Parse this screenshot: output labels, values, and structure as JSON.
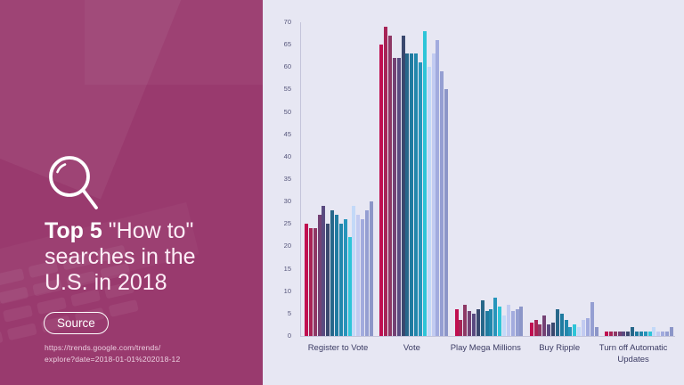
{
  "left_panel": {
    "icon": "magnifier-icon",
    "title_bold": "Top 5",
    "title_rest": "\"How to\"",
    "title_line2": "searches in the",
    "title_line3": "U.S. in 2018",
    "source_label": "Source",
    "url_line1": "https://trends.google.com/trends/",
    "url_line2": "explore?date=2018-01-01%202018-12"
  },
  "colors": {
    "left_panel_bg": "#993a6e",
    "right_panel_bg": "#e7e7f3",
    "axis_line": "#c4c4da",
    "tick_text": "#55557a",
    "label_text": "#3c3c64"
  },
  "chart_data": {
    "type": "bar",
    "title": "Top 5 \"How to\" searches in the U.S. in 2018",
    "xlabel": "",
    "ylabel": "",
    "ylim": [
      0,
      70
    ],
    "y_ticks": [
      0,
      5,
      10,
      15,
      20,
      25,
      30,
      35,
      40,
      45,
      50,
      55,
      60,
      65,
      70
    ],
    "grid": false,
    "legend": "none",
    "bars_per_group": 16,
    "bar_colors": [
      "#c00f50",
      "#a72456",
      "#8e3865",
      "#744174",
      "#5a4a80",
      "#3a486e",
      "#27678a",
      "#1f7ba0",
      "#2187ac",
      "#2695bb",
      "#2ec5d8",
      "#c3d9f8",
      "#c2cbf1",
      "#a2abde",
      "#959fd2",
      "#8c96c8"
    ],
    "categories": [
      "Register to Vote",
      "Vote",
      "Play Mega Millions",
      "Buy Ripple",
      "Turn off Automatic Updates"
    ],
    "groups": [
      {
        "label": "Register to Vote",
        "values": [
          25,
          24,
          24,
          27,
          29,
          25,
          28,
          27,
          25,
          26,
          22,
          29,
          27,
          26,
          28,
          30
        ]
      },
      {
        "label": "Vote",
        "values": [
          65,
          69,
          67,
          62,
          62,
          67,
          63,
          63,
          63,
          61,
          68,
          60,
          63,
          66,
          59,
          55
        ]
      },
      {
        "label": "Play Mega Millions",
        "values": [
          6,
          3.5,
          7,
          5.5,
          5,
          6,
          8,
          5.5,
          6,
          8.5,
          6.5,
          4.5,
          7,
          5.5,
          6,
          6.5
        ]
      },
      {
        "label": "Buy Ripple",
        "values": [
          3,
          3.5,
          2.5,
          4.5,
          2.5,
          3,
          6,
          5,
          3.5,
          2,
          2.5,
          2,
          3.5,
          4,
          7.5,
          2
        ]
      },
      {
        "label": "Turn off Automatic Updates",
        "values": [
          1,
          1,
          1,
          1,
          1,
          1,
          2,
          1,
          1,
          1,
          1,
          2,
          1,
          1,
          1,
          2
        ]
      }
    ]
  }
}
